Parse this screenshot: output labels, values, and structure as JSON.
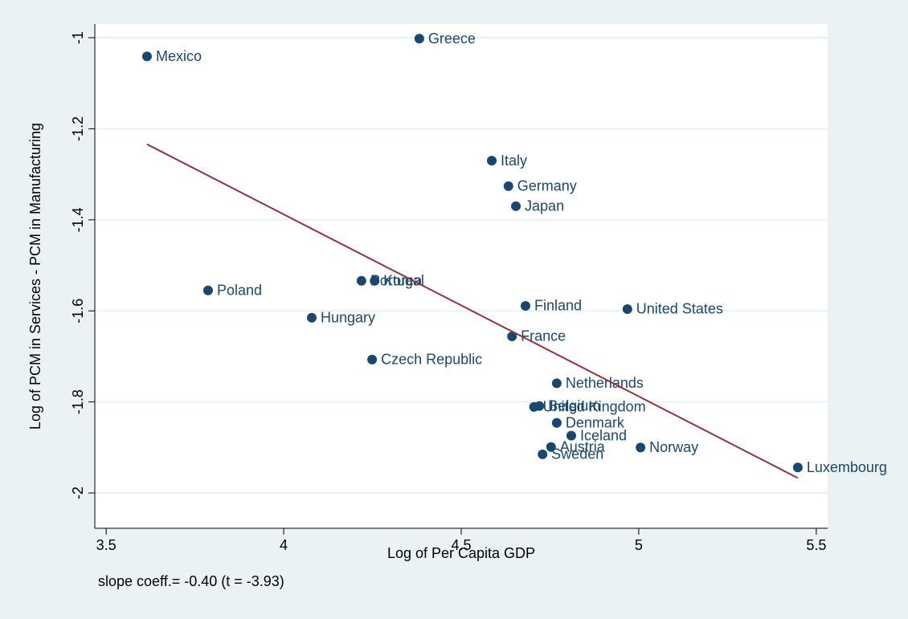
{
  "chart_data": {
    "type": "scatter",
    "x_label": "Log of Per Capita GDP",
    "y_label": "Log of PCM in Services - PCM in Manufacturing",
    "note": "slope coeff.=  -0.40 (t = -3.93)",
    "labels": [
      "Mexico",
      "Greece",
      "Italy",
      "Germany",
      "Japan",
      "Poland",
      "Portugal",
      "Korea",
      "Hungary",
      "Finland",
      "United States",
      "France",
      "Czech Republic",
      "Netherlands",
      "United Kingdom",
      "Belgium",
      "Denmark",
      "Iceland",
      "Norway",
      "Austria",
      "Sweden",
      "Luxembourg"
    ],
    "x": [
      3.615,
      4.382,
      4.586,
      4.633,
      4.654,
      3.787,
      4.219,
      4.256,
      4.079,
      4.681,
      4.968,
      4.643,
      4.249,
      4.769,
      4.705,
      4.72,
      4.769,
      4.81,
      5.005,
      4.753,
      4.729,
      5.448
    ],
    "y": [
      -1.041,
      -1.002,
      -1.27,
      -1.326,
      -1.37,
      -1.555,
      -1.534,
      -1.534,
      -1.615,
      -1.589,
      -1.596,
      -1.656,
      -1.707,
      -1.759,
      -1.811,
      -1.809,
      -1.846,
      -1.874,
      -1.9,
      -1.899,
      -1.915,
      -1.944
    ],
    "color": "#1a476f",
    "fit": {
      "x": [
        3.615,
        5.448
      ],
      "y": [
        -1.234,
        -1.967
      ],
      "color": "#90353b"
    },
    "xlim": [
      3.468,
      5.532
    ],
    "ylim": [
      -2.0775,
      -0.97
    ],
    "xticks": [
      3.5,
      4,
      4.5,
      5,
      5.5
    ],
    "yticks": [
      -2,
      -1.8,
      -1.6,
      -1.4,
      -1.2,
      -1
    ],
    "grid": true
  }
}
